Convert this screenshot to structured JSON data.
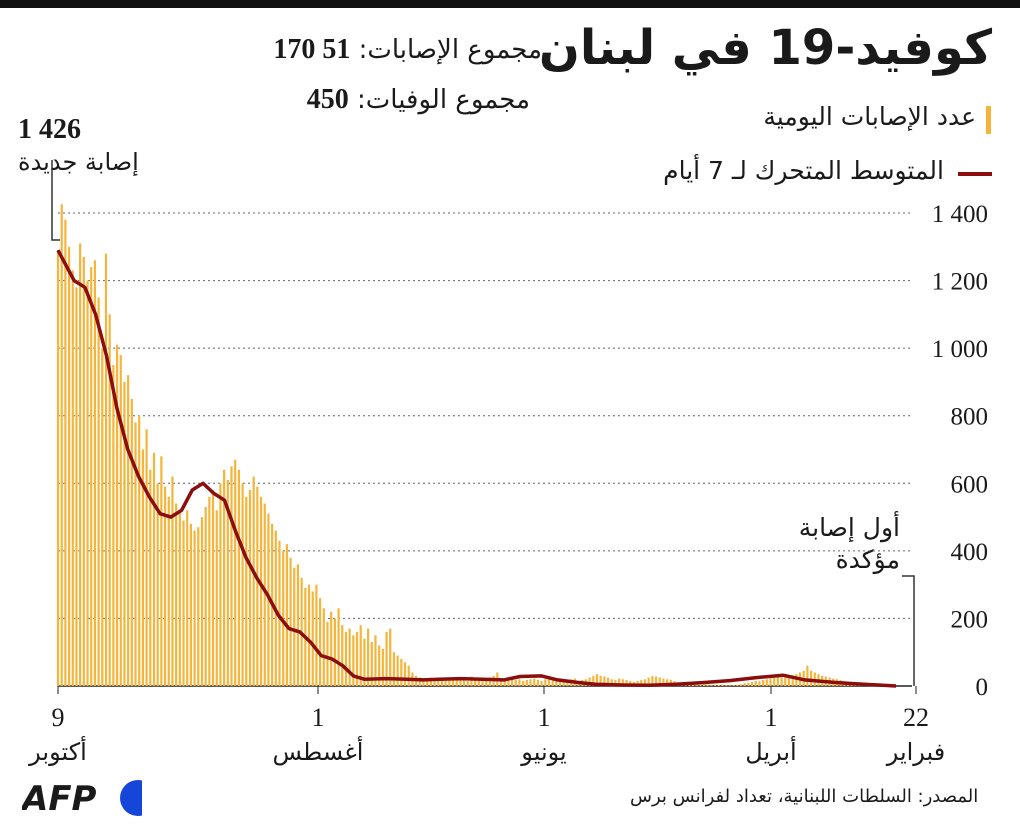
{
  "title": "كوفيد-19 في لبنان",
  "totals": {
    "cases_label": "مجموع الإصابات:",
    "cases_value": "51 170",
    "deaths_label": "مجموع الوفيات:",
    "deaths_value": "450"
  },
  "legend": {
    "daily": "عدد الإصابات اليومية",
    "avg": "المتوسط المتحرك لـ 7 أيام"
  },
  "peak": {
    "value": "1 426",
    "label": "إصابة جديدة"
  },
  "first_case_label": [
    "أول إصابة",
    "مؤكدة"
  ],
  "source": "المصدر: السلطات اللبنانية، تعداد لفرانس برس",
  "logo": "AFP",
  "colors": {
    "bars": "#f5b53b",
    "line": "#8b0d0d",
    "grid": "#555555"
  },
  "chart_data": {
    "type": "bar",
    "ylim": [
      0,
      1400
    ],
    "yticks": [
      "1 400",
      "1 200",
      "1 000",
      "800",
      "600",
      "400",
      "200",
      "0"
    ],
    "ytick_values": [
      1400,
      1200,
      1000,
      800,
      600,
      400,
      200,
      0
    ],
    "xticks": [
      {
        "day": "9",
        "month": "أكتوبر"
      },
      {
        "day": "1",
        "month": "أغسطس"
      },
      {
        "day": "1",
        "month": "يونيو"
      },
      {
        "day": "1",
        "month": "أبريل"
      },
      {
        "day": "22",
        "month": "فبراير"
      }
    ],
    "series": [
      {
        "name": "عدد الإصابات اليومية",
        "type": "bar",
        "values_oct9_to_feb22_approx": [
          1290,
          1426,
          1380,
          1300,
          1230,
          1180,
          1310,
          1270,
          1200,
          1240,
          1260,
          1150,
          1000,
          1280,
          1100,
          950,
          1010,
          980,
          900,
          920,
          850,
          780,
          800,
          700,
          760,
          640,
          690,
          600,
          680,
          590,
          560,
          620,
          540,
          520,
          490,
          520,
          480,
          460,
          470,
          500,
          530,
          560,
          580,
          520,
          600,
          640,
          610,
          650,
          670,
          640,
          600,
          560,
          580,
          620,
          590,
          560,
          540,
          510,
          480,
          460,
          430,
          400,
          420,
          380,
          350,
          360,
          320,
          290,
          300,
          280,
          300,
          260,
          230,
          190,
          220,
          200,
          230,
          180,
          160,
          170,
          150,
          160,
          180,
          140,
          170,
          130,
          150,
          120,
          110,
          160,
          170,
          100,
          90,
          80,
          70,
          60,
          40,
          30,
          25,
          20,
          20,
          25,
          18,
          20,
          22,
          20,
          18,
          25,
          20,
          18,
          22,
          15,
          28,
          20,
          18,
          22,
          20,
          25,
          30,
          40,
          20,
          18,
          15,
          20,
          18,
          20,
          15,
          18,
          20,
          22,
          18,
          15,
          20,
          30,
          25,
          18,
          15,
          20,
          18,
          20,
          22,
          15,
          18,
          20,
          25,
          30,
          35,
          30,
          28,
          25,
          20,
          18,
          22,
          20,
          18,
          15,
          12,
          15,
          18,
          20,
          25,
          30,
          28,
          25,
          22,
          20,
          18,
          15,
          10,
          8,
          5,
          5,
          3,
          4,
          3,
          5,
          4,
          3,
          2,
          3,
          4,
          3,
          2,
          3,
          4,
          5,
          8,
          10,
          12,
          15,
          14,
          18,
          20,
          22,
          24,
          26,
          25,
          28,
          30,
          32,
          35,
          40,
          45,
          60,
          45,
          40,
          35,
          30,
          28,
          25,
          22,
          20,
          18,
          15,
          12,
          10,
          8,
          6,
          5,
          4,
          3,
          2,
          1,
          0,
          0,
          0,
          0,
          0
        ]
      },
      {
        "name": "المتوسط المتحرك لـ 7 أيام",
        "type": "line",
        "points": [
          [
            0,
            1290
          ],
          [
            6,
            1200
          ],
          [
            10,
            1180
          ],
          [
            14,
            1100
          ],
          [
            18,
            980
          ],
          [
            22,
            820
          ],
          [
            26,
            700
          ],
          [
            30,
            620
          ],
          [
            34,
            560
          ],
          [
            38,
            510
          ],
          [
            42,
            500
          ],
          [
            46,
            520
          ],
          [
            50,
            580
          ],
          [
            54,
            600
          ],
          [
            58,
            570
          ],
          [
            62,
            550
          ],
          [
            66,
            460
          ],
          [
            70,
            380
          ],
          [
            74,
            320
          ],
          [
            78,
            270
          ],
          [
            82,
            210
          ],
          [
            86,
            170
          ],
          [
            90,
            160
          ],
          [
            94,
            130
          ],
          [
            98,
            90
          ],
          [
            102,
            80
          ],
          [
            106,
            60
          ],
          [
            110,
            30
          ],
          [
            114,
            20
          ],
          [
            122,
            22
          ],
          [
            130,
            20
          ],
          [
            136,
            18
          ],
          [
            142,
            20
          ],
          [
            150,
            22
          ],
          [
            158,
            20
          ],
          [
            166,
            18
          ],
          [
            172,
            28
          ],
          [
            180,
            30
          ],
          [
            186,
            18
          ],
          [
            194,
            10
          ],
          [
            200,
            5
          ],
          [
            210,
            3
          ],
          [
            220,
            2
          ],
          [
            230,
            5
          ],
          [
            240,
            10
          ],
          [
            250,
            16
          ],
          [
            260,
            25
          ],
          [
            270,
            32
          ],
          [
            278,
            18
          ],
          [
            290,
            10
          ],
          [
            300,
            5
          ],
          [
            312,
            0
          ]
        ]
      }
    ]
  }
}
